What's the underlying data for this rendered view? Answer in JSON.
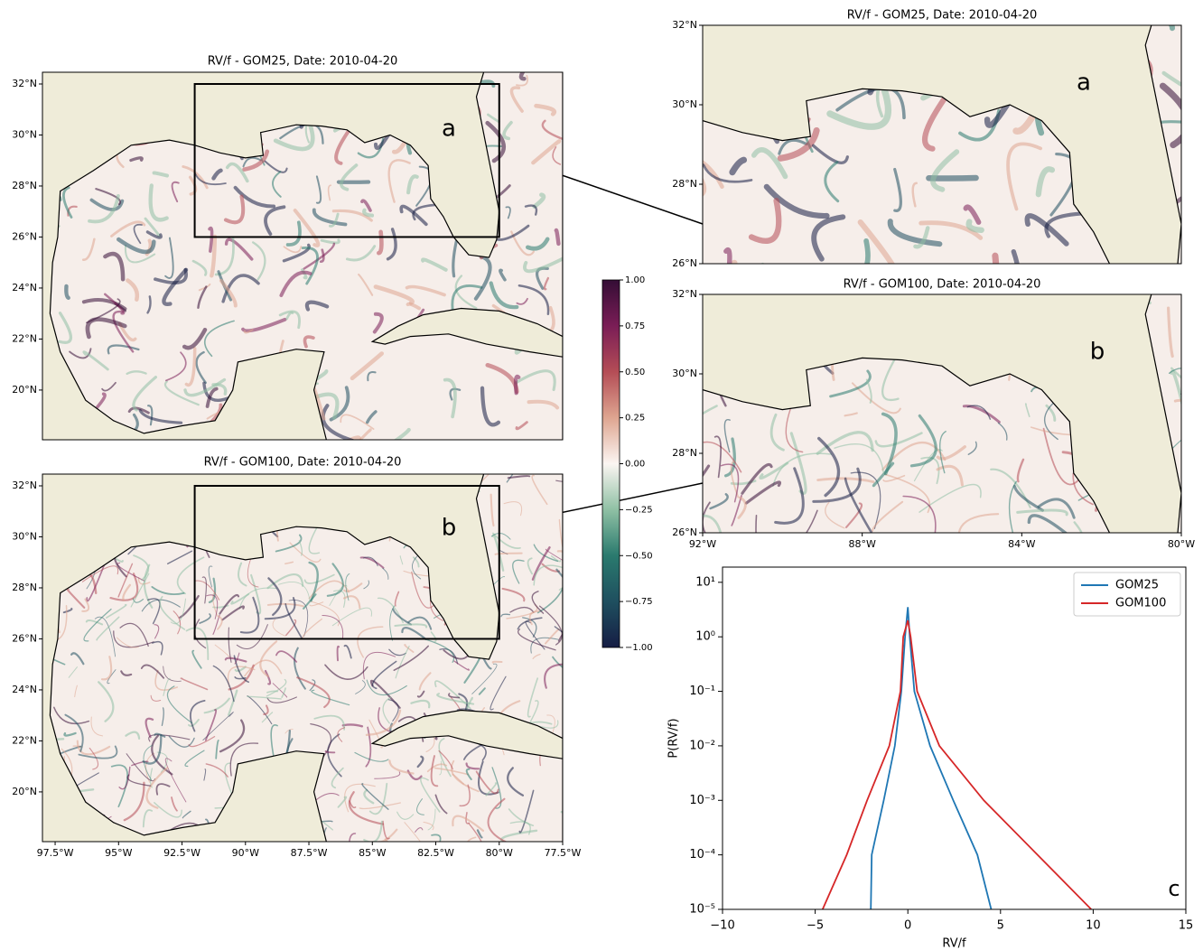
{
  "chart_data": [
    {
      "type": "map",
      "title": "RV/f - GOM25, Date: 2010-04-20",
      "label": "a",
      "xlim": [
        -98,
        -77.5
      ],
      "ylim": [
        18.05,
        32.46
      ],
      "yticks": [
        {
          "value": 20,
          "label": "20°N"
        },
        {
          "value": 22,
          "label": "22°N"
        },
        {
          "value": 24,
          "label": "24°N"
        },
        {
          "value": 26,
          "label": "26°N"
        },
        {
          "value": 28,
          "label": "28°N"
        },
        {
          "value": 30,
          "label": "30°N"
        },
        {
          "value": 32,
          "label": "32°N"
        }
      ],
      "inset_box": {
        "xlim": [
          -92,
          -80
        ],
        "ylim": [
          26,
          32
        ]
      }
    },
    {
      "type": "map",
      "title": "RV/f - GOM100, Date: 2010-04-20",
      "label": "b",
      "xlim": [
        -98,
        -77.5
      ],
      "ylim": [
        18.05,
        32.46
      ],
      "yticks": [
        {
          "value": 20,
          "label": "20°N"
        },
        {
          "value": 22,
          "label": "22°N"
        },
        {
          "value": 24,
          "label": "24°N"
        },
        {
          "value": 26,
          "label": "26°N"
        },
        {
          "value": 28,
          "label": "28°N"
        },
        {
          "value": 30,
          "label": "30°N"
        },
        {
          "value": 32,
          "label": "32°N"
        }
      ],
      "xticks": [
        {
          "value": -97.5,
          "label": "97.5°W"
        },
        {
          "value": -95,
          "label": "95°W"
        },
        {
          "value": -92.5,
          "label": "92.5°W"
        },
        {
          "value": -90,
          "label": "90°W"
        },
        {
          "value": -87.5,
          "label": "87.5°W"
        },
        {
          "value": -85,
          "label": "85°W"
        },
        {
          "value": -82.5,
          "label": "82.5°W"
        },
        {
          "value": -80,
          "label": "80°W"
        },
        {
          "value": -77.5,
          "label": "77.5°W"
        }
      ],
      "inset_box": {
        "xlim": [
          -92,
          -80
        ],
        "ylim": [
          26,
          32
        ]
      }
    },
    {
      "type": "map",
      "title": "RV/f - GOM25, Date: 2010-04-20",
      "label": "a",
      "xlim": [
        -92,
        -80
      ],
      "ylim": [
        26,
        32
      ],
      "yticks": [
        {
          "value": 26,
          "label": "26°N"
        },
        {
          "value": 28,
          "label": "28°N"
        },
        {
          "value": 30,
          "label": "30°N"
        },
        {
          "value": 32,
          "label": "32°N"
        }
      ]
    },
    {
      "type": "map",
      "title": "RV/f - GOM100, Date: 2010-04-20",
      "label": "b",
      "xlim": [
        -92,
        -80
      ],
      "ylim": [
        26,
        32
      ],
      "yticks": [
        {
          "value": 26,
          "label": "26°N"
        },
        {
          "value": 28,
          "label": "28°N"
        },
        {
          "value": 30,
          "label": "30°N"
        },
        {
          "value": 32,
          "label": "32°N"
        }
      ],
      "xticks": [
        {
          "value": -92,
          "label": "92°W"
        },
        {
          "value": -88,
          "label": "88°W"
        },
        {
          "value": -84,
          "label": "84°W"
        },
        {
          "value": -80,
          "label": "80°W"
        }
      ]
    },
    {
      "type": "colorbar",
      "ylim": [
        -1,
        1
      ],
      "yticks": [
        {
          "value": -1,
          "label": "−1.00"
        },
        {
          "value": -0.75,
          "label": "−0.75"
        },
        {
          "value": -0.5,
          "label": "−0.50"
        },
        {
          "value": -0.25,
          "label": "−0.25"
        },
        {
          "value": 0,
          "label": "0.00"
        },
        {
          "value": 0.25,
          "label": "0.25"
        },
        {
          "value": 0.5,
          "label": "0.50"
        },
        {
          "value": 0.75,
          "label": "0.75"
        },
        {
          "value": 1,
          "label": "1.00"
        }
      ],
      "colormap": [
        "#151d44",
        "#1f4f5f",
        "#2a7a6e",
        "#8fc0a4",
        "#fbf5f2",
        "#dea590",
        "#b44d56",
        "#7a1d56",
        "#340d35"
      ]
    },
    {
      "type": "line",
      "label": "c",
      "xlabel": "RV/f",
      "ylabel": "P(RV/f)",
      "log_y": true,
      "legend": "upper right",
      "xlim": [
        -10,
        15
      ],
      "ylim": [
        1e-05,
        19
      ],
      "xticks": [
        {
          "value": -10,
          "label": "−10"
        },
        {
          "value": -5,
          "label": "−5"
        },
        0,
        5,
        10,
        15
      ],
      "yticks": [
        {
          "value": 1e-05,
          "label": "10⁻⁵"
        },
        {
          "value": 0.0001,
          "label": "10⁻⁴"
        },
        {
          "value": 0.001,
          "label": "10⁻³"
        },
        {
          "value": 0.01,
          "label": "10⁻²"
        },
        {
          "value": 0.1,
          "label": "10⁻¹"
        },
        {
          "value": 1,
          "label": "10⁰"
        },
        {
          "value": 10,
          "label": "10¹"
        }
      ],
      "series": [
        {
          "name": "GOM25",
          "color": "#1f77b4",
          "x": [
            -2,
            -1.95,
            -1.3,
            -0.7,
            -0.35,
            -0.15,
            0,
            0.1,
            0.35,
            1.2,
            2.45,
            3.75,
            4.5
          ],
          "values": [
            1e-05,
            0.0001,
            0.001,
            0.01,
            0.1,
            1,
            3.5,
            1,
            0.1,
            0.01,
            0.001,
            0.0001,
            1e-05
          ]
        },
        {
          "name": "GOM100",
          "color": "#d62728",
          "x": [
            -4.6,
            -3.3,
            -2.2,
            -1,
            -0.4,
            -0.25,
            0,
            0.15,
            0.5,
            1.7,
            4.1,
            7,
            9.9
          ],
          "values": [
            1e-05,
            0.0001,
            0.001,
            0.01,
            0.1,
            1,
            2,
            1,
            0.1,
            0.01,
            0.001,
            0.0001,
            1e-05
          ]
        }
      ]
    }
  ]
}
